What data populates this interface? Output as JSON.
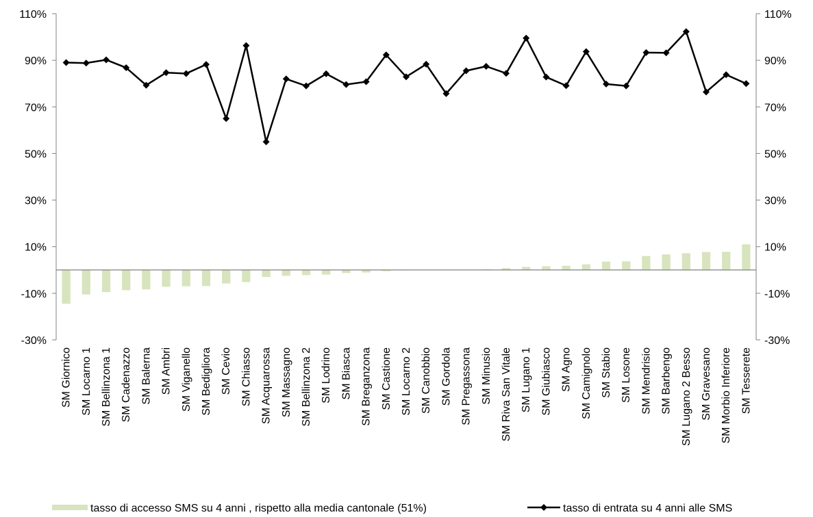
{
  "chart_data": {
    "type": "bar",
    "categories": [
      "SM Giornico",
      "SM Locarno 1",
      "SM Bellinzona 1",
      "SM Cadenazzo",
      "SM Balerna",
      "SM Ambri",
      "SM Viganello",
      "SM Bedigliora",
      "SM Cevio",
      "SM Chiasso",
      "SM Acquarossa",
      "SM Massagno",
      "SM Bellinzona 2",
      "SM Lodrino",
      "SM Biasca",
      "SM Breganzona",
      "SM Castione",
      "SM Locarno 2",
      "SM Canobbio",
      "SM Gordola",
      "SM Pregassona",
      "SM Minusio",
      "SM Riva San Vitale",
      "SM Lugano 1",
      "SM Giubiasco",
      "SM Agno",
      "SM Camignolo",
      "SM Stabio",
      "SM Losone",
      "SM Mendrisio",
      "SM Barbengo",
      "SM Lugano 2 Besso",
      "SM Gravesano",
      "SM Morbio Inferiore",
      "SM Tesserete"
    ],
    "series": [
      {
        "name": "tasso di accesso SMS su 4 anni , rispetto alla media cantonale (51%)",
        "type": "bar",
        "color": "#d7e4bd",
        "values": [
          -14.5,
          -10.5,
          -9.5,
          -8.7,
          -8.3,
          -7.2,
          -7.0,
          -6.9,
          -5.8,
          -5.2,
          -3.0,
          -2.5,
          -2.2,
          -2.0,
          -1.3,
          -1.1,
          -0.5,
          -0.2,
          -0.1,
          0.0,
          0.1,
          0.3,
          0.8,
          1.3,
          1.6,
          1.8,
          2.4,
          3.6,
          3.7,
          6.0,
          6.7,
          7.2,
          7.7,
          7.8,
          11.0
        ]
      },
      {
        "name": "tasso di entrata su 4 anni alle SMS",
        "type": "line",
        "color": "#000000",
        "marker": "diamond",
        "values": [
          89,
          88.8,
          90.2,
          86.8,
          79.3,
          84.7,
          84.3,
          88.2,
          65,
          96.3,
          55,
          82,
          79,
          84.2,
          79.6,
          80.8,
          92.3,
          82.9,
          88.3,
          75.7,
          85.5,
          87.4,
          84.4,
          99.5,
          82.8,
          79.1,
          93.7,
          79.8,
          79,
          93.3,
          93.2,
          102.3,
          76.4,
          83.8,
          80
        ]
      }
    ],
    "yaxis": {
      "min": -30,
      "max": 110,
      "ticks": [
        -30,
        -10,
        10,
        30,
        50,
        70,
        90,
        110
      ],
      "tick_labels": [
        "-30%",
        "-10%",
        "10%",
        "30%",
        "50%",
        "70%",
        "90%",
        "110%"
      ]
    },
    "secondary_yaxis": {
      "min": -30,
      "max": 110,
      "ticks": [
        -30,
        -10,
        10,
        30,
        50,
        70,
        90,
        110
      ],
      "tick_labels": [
        "-30%",
        "-10%",
        "10%",
        "30%",
        "50%",
        "70%",
        "90%",
        "110%"
      ]
    },
    "grid": false,
    "legend_position": "bottom"
  }
}
